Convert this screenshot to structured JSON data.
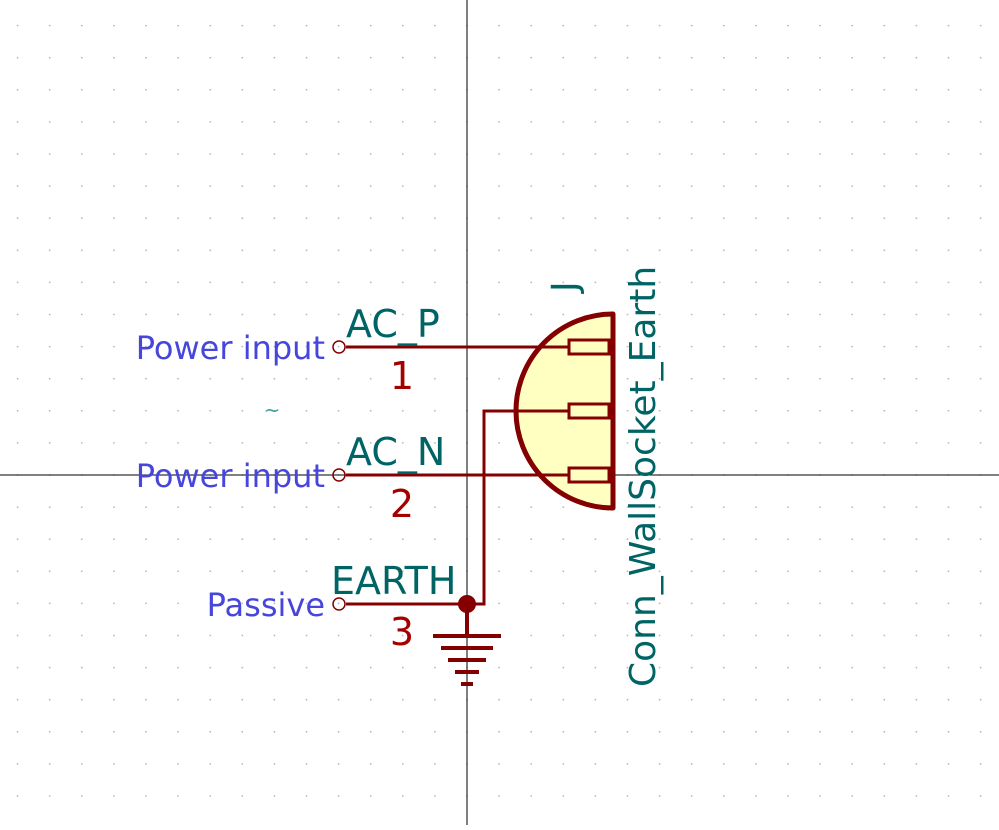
{
  "symbol": {
    "reference": "J",
    "value": "Conn_WallSocket_Earth",
    "pins": [
      {
        "number": "1",
        "name": "AC_P",
        "type": "Power input"
      },
      {
        "number": "2",
        "name": "AC_N",
        "type": "Power input"
      },
      {
        "number": "3",
        "name": "EARTH",
        "type": "Passive"
      }
    ],
    "anchor_mark": "~"
  },
  "colors": {
    "background": "#ffffff",
    "grid_dot": "#b8b8b8",
    "crosshair": "#000000",
    "pin_and_body": "#840000",
    "body_fill": "#ffffc2",
    "pin_name_text": "#006464",
    "pin_number_text": "#a50000",
    "electrical_type_text": "#4646dc",
    "anchor_mark": "#40a0a0"
  }
}
